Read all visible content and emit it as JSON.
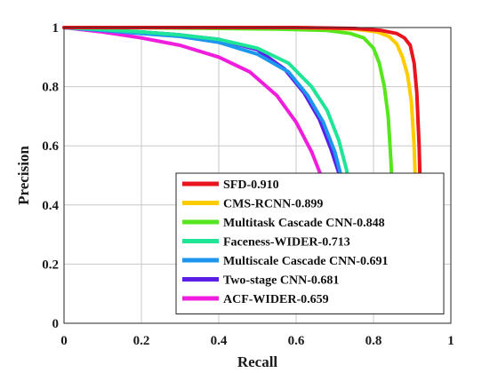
{
  "chart_data": {
    "type": "line",
    "title": "",
    "xlabel": "Recall",
    "ylabel": "Precision",
    "xlim": [
      0,
      1
    ],
    "ylim": [
      0,
      1
    ],
    "xticks": [
      0,
      0.2,
      0.4,
      0.6,
      0.8,
      1
    ],
    "xtick_labels": [
      "0",
      "0.2",
      "0.4",
      "0.6",
      "0.8",
      "1"
    ],
    "yticks": [
      0,
      0.2,
      0.4,
      0.6,
      0.8,
      1
    ],
    "ytick_labels": [
      "0",
      "0.2",
      "0.4",
      "0.6",
      "0.8",
      "1"
    ],
    "grid": true,
    "legend_position": "bottom-right",
    "series": [
      {
        "name": "SFD-0.910",
        "color": "#e8141e",
        "x": [
          0,
          0.2,
          0.4,
          0.6,
          0.75,
          0.82,
          0.86,
          0.88,
          0.895,
          0.905,
          0.912,
          0.918,
          0.922,
          0.925,
          0.927
        ],
        "y": [
          1,
          1,
          1,
          1,
          0.997,
          0.99,
          0.98,
          0.965,
          0.94,
          0.88,
          0.78,
          0.6,
          0.4,
          0.2,
          0.05
        ]
      },
      {
        "name": "CMS-RCNN-0.899",
        "color": "#ffcc00",
        "x": [
          0,
          0.2,
          0.4,
          0.6,
          0.75,
          0.81,
          0.84,
          0.86,
          0.875,
          0.888,
          0.898,
          0.905,
          0.91,
          0.914,
          0.917
        ],
        "y": [
          1,
          1,
          1,
          1,
          0.995,
          0.985,
          0.97,
          0.945,
          0.9,
          0.84,
          0.75,
          0.6,
          0.4,
          0.2,
          0.05
        ]
      },
      {
        "name": "Multitask Cascade CNN-0.848",
        "color": "#55e61e",
        "x": [
          0,
          0.2,
          0.4,
          0.55,
          0.68,
          0.74,
          0.775,
          0.8,
          0.815,
          0.828,
          0.838,
          0.845,
          0.85,
          0.854,
          0.856
        ],
        "y": [
          1,
          0.999,
          0.997,
          0.995,
          0.99,
          0.98,
          0.965,
          0.93,
          0.88,
          0.8,
          0.7,
          0.55,
          0.4,
          0.25,
          0.15
        ]
      },
      {
        "name": "Faceness-WIDER-0.713",
        "color": "#1ee696",
        "x": [
          0,
          0.1,
          0.2,
          0.3,
          0.4,
          0.5,
          0.58,
          0.64,
          0.68,
          0.71,
          0.73,
          0.745,
          0.755,
          0.762,
          0.766
        ],
        "y": [
          1,
          0.993,
          0.985,
          0.975,
          0.96,
          0.93,
          0.88,
          0.8,
          0.72,
          0.62,
          0.52,
          0.42,
          0.32,
          0.25,
          0.2
        ]
      },
      {
        "name": "Multiscale Cascade CNN-0.691",
        "color": "#1e96f0",
        "x": [
          0,
          0.1,
          0.2,
          0.3,
          0.4,
          0.5,
          0.58,
          0.63,
          0.67,
          0.7,
          0.72,
          0.735,
          0.745,
          0.752,
          0.756
        ],
        "y": [
          1,
          0.99,
          0.98,
          0.97,
          0.95,
          0.91,
          0.85,
          0.77,
          0.68,
          0.58,
          0.48,
          0.38,
          0.29,
          0.22,
          0.18
        ]
      },
      {
        "name": "Two-stage CNN-0.681",
        "color": "#5a1ee6",
        "x": [
          0,
          0.1,
          0.2,
          0.3,
          0.4,
          0.5,
          0.57,
          0.62,
          0.66,
          0.69,
          0.715,
          0.73,
          0.742,
          0.75,
          0.755
        ],
        "y": [
          1,
          0.99,
          0.985,
          0.975,
          0.96,
          0.925,
          0.86,
          0.78,
          0.69,
          0.59,
          0.49,
          0.39,
          0.3,
          0.22,
          0.17
        ]
      },
      {
        "name": "ACF-WIDER-0.659",
        "color": "#f01edc",
        "x": [
          0,
          0.1,
          0.2,
          0.3,
          0.4,
          0.48,
          0.55,
          0.6,
          0.64,
          0.67,
          0.69,
          0.705,
          0.715,
          0.722,
          0.727
        ],
        "y": [
          1,
          0.985,
          0.965,
          0.94,
          0.9,
          0.85,
          0.77,
          0.68,
          0.58,
          0.48,
          0.39,
          0.32,
          0.26,
          0.22,
          0.19
        ]
      }
    ]
  }
}
